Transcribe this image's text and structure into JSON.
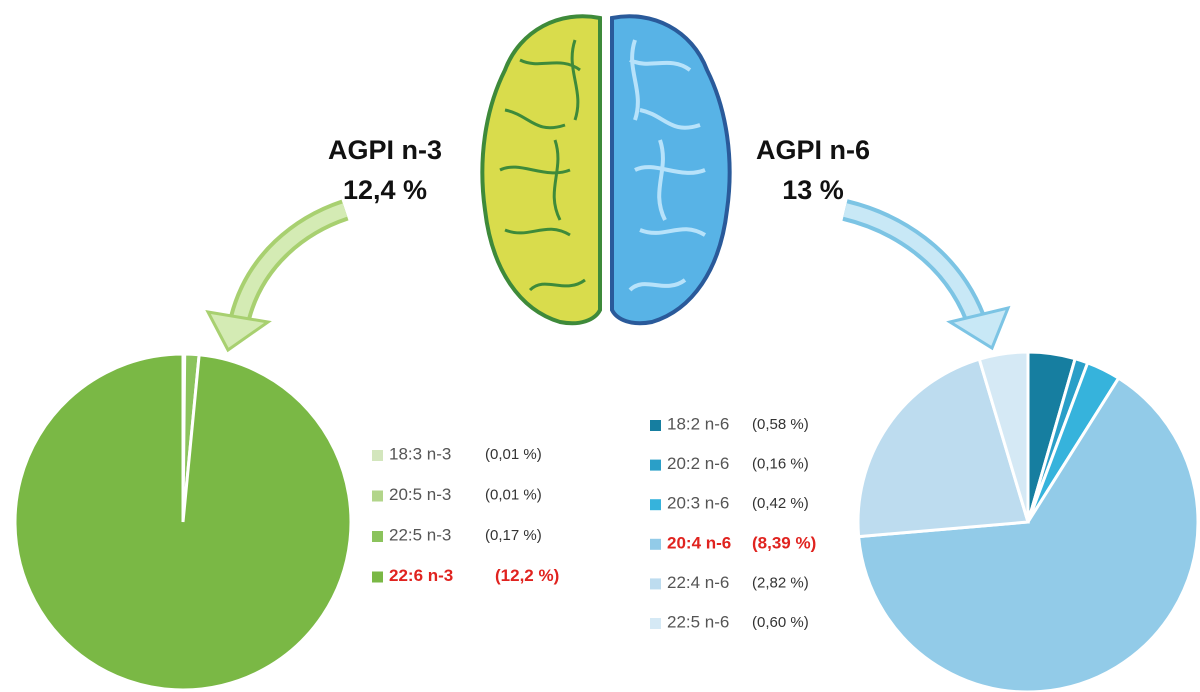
{
  "chart_data": [
    {
      "type": "pie",
      "title": "AGPI n-3",
      "subtitle": "12,4 %",
      "categories": [
        "18:3 n-3",
        "20:5 n-3",
        "22:5 n-3",
        "22:6 n-3"
      ],
      "values": [
        0.01,
        0.01,
        0.17,
        12.2
      ],
      "value_labels": [
        "(0,01 %)",
        "(0,01 %)",
        "(0,17 %)",
        "(12,2 %)"
      ],
      "colors": [
        "#d3e6bd",
        "#b2d58a",
        "#8bc35c",
        "#7ab845"
      ],
      "highlight": 3
    },
    {
      "type": "pie",
      "title": "AGPI n-6",
      "subtitle": "13 %",
      "categories": [
        "18:2 n-6",
        "20:2 n-6",
        "20:3 n-6",
        "20:4 n-6",
        "22:4 n-6",
        "22:5 n-6"
      ],
      "values": [
        0.58,
        0.16,
        0.42,
        8.39,
        2.82,
        0.6
      ],
      "value_labels": [
        "(0,58 %)",
        "(0,16 %)",
        "(0,42 %)",
        "(8,39 %)",
        "(2,82 %)",
        "(0,60 %)"
      ],
      "colors": [
        "#167ea0",
        "#2a9fc8",
        "#36b3dc",
        "#92cbe8",
        "#bddcef",
        "#d5e9f5"
      ],
      "highlight": 3
    }
  ]
}
